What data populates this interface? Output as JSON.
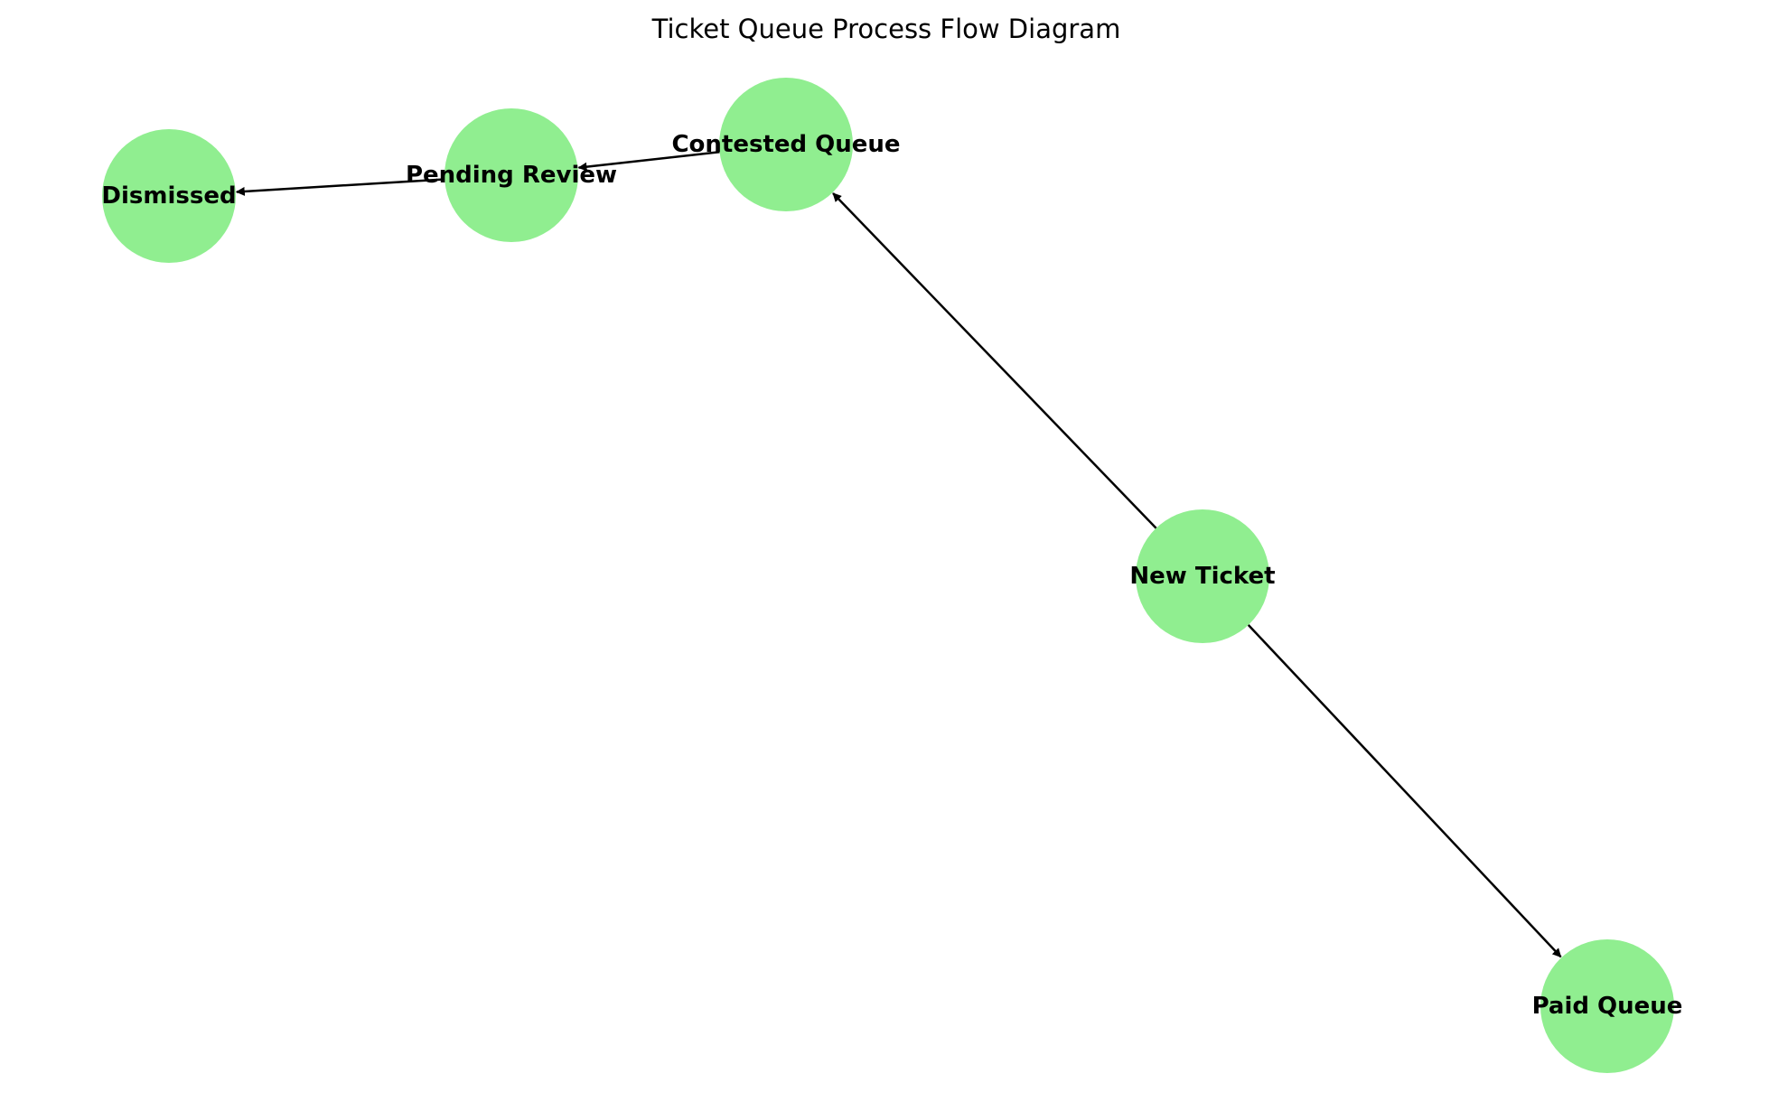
{
  "diagram": {
    "title": "Ticket Queue Process Flow Diagram",
    "node_color": "#90ee90",
    "edge_color": "#000000",
    "nodes": [
      {
        "id": "new_ticket",
        "label": "New Ticket"
      },
      {
        "id": "contested_queue",
        "label": "Contested Queue"
      },
      {
        "id": "pending_review",
        "label": "Pending Review"
      },
      {
        "id": "dismissed",
        "label": "Dismissed"
      },
      {
        "id": "paid_queue",
        "label": "Paid Queue"
      }
    ],
    "edges": [
      {
        "from": "new_ticket",
        "to": "contested_queue"
      },
      {
        "from": "contested_queue",
        "to": "pending_review"
      },
      {
        "from": "pending_review",
        "to": "dismissed"
      },
      {
        "from": "new_ticket",
        "to": "paid_queue"
      }
    ]
  }
}
